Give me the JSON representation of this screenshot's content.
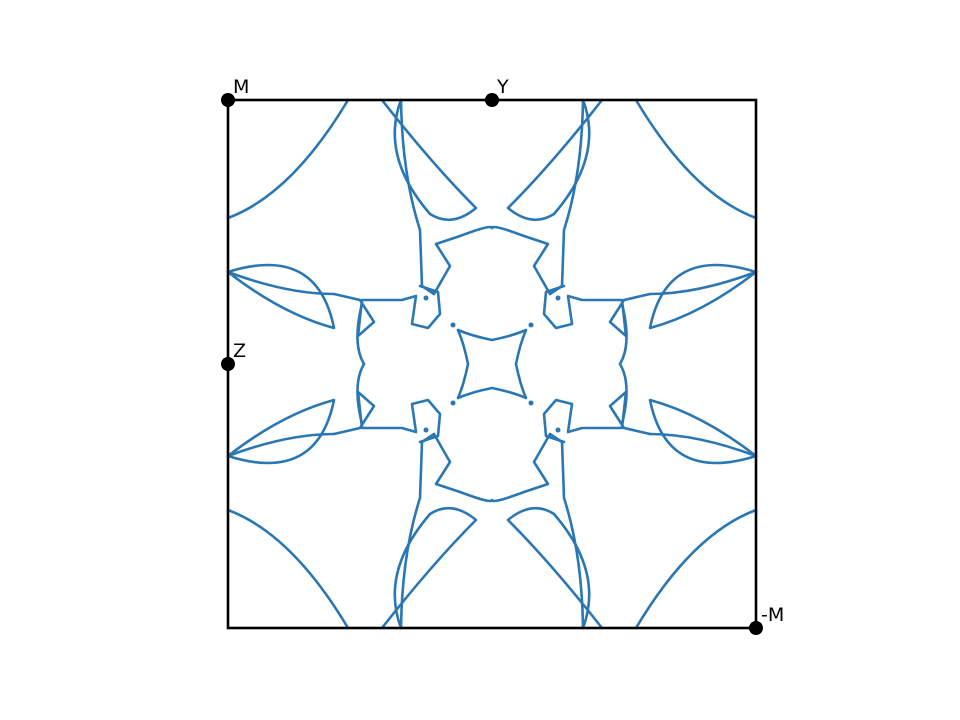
{
  "colors": {
    "contour": "#2a77b3",
    "frame": "#000000",
    "marker": "#000000",
    "background": "#ffffff"
  },
  "labels": {
    "corner_top_left": "M",
    "top_mid": "Y",
    "left_mid": "Z",
    "corner_bottom_right": "-M"
  }
}
